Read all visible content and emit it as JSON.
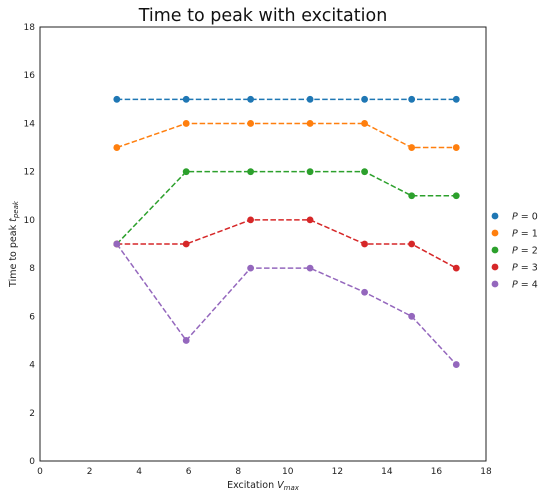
{
  "chart_data": {
    "type": "line",
    "title": "Time to peak with excitation",
    "xlabel": {
      "main": "Excitation ",
      "var": "V",
      "sub": "max"
    },
    "ylabel": {
      "main": "Time to peak  ",
      "var": "t",
      "sub": "peak"
    },
    "xlim": [
      0,
      18
    ],
    "ylim": [
      0,
      18
    ],
    "xticks": [
      0,
      2,
      4,
      6,
      8,
      10,
      12,
      14,
      16,
      18
    ],
    "yticks": [
      0,
      2,
      4,
      6,
      8,
      10,
      12,
      14,
      16,
      18
    ],
    "grid": false,
    "legend_position": "right-center",
    "x": [
      3.1,
      5.9,
      8.5,
      10.9,
      13.1,
      15.0,
      16.8
    ],
    "series": [
      {
        "name": "P = 0",
        "var": "P",
        "val": "0",
        "color": "#1f77b4",
        "values": [
          15,
          15,
          15,
          15,
          15,
          15,
          15
        ]
      },
      {
        "name": "P = 1",
        "var": "P",
        "val": "1",
        "color": "#ff7f0e",
        "values": [
          13,
          14,
          14,
          14,
          14,
          13,
          13
        ]
      },
      {
        "name": "P = 2",
        "var": "P",
        "val": "2",
        "color": "#2ca02c",
        "values": [
          9,
          12,
          12,
          12,
          12,
          11,
          11
        ]
      },
      {
        "name": "P = 3",
        "var": "P",
        "val": "3",
        "color": "#d62728",
        "values": [
          9,
          9,
          10,
          10,
          9,
          9,
          8
        ]
      },
      {
        "name": "P = 4",
        "var": "P",
        "val": "4",
        "color": "#9467bd",
        "values": [
          9,
          5,
          8,
          8,
          7,
          6,
          4
        ]
      }
    ]
  }
}
